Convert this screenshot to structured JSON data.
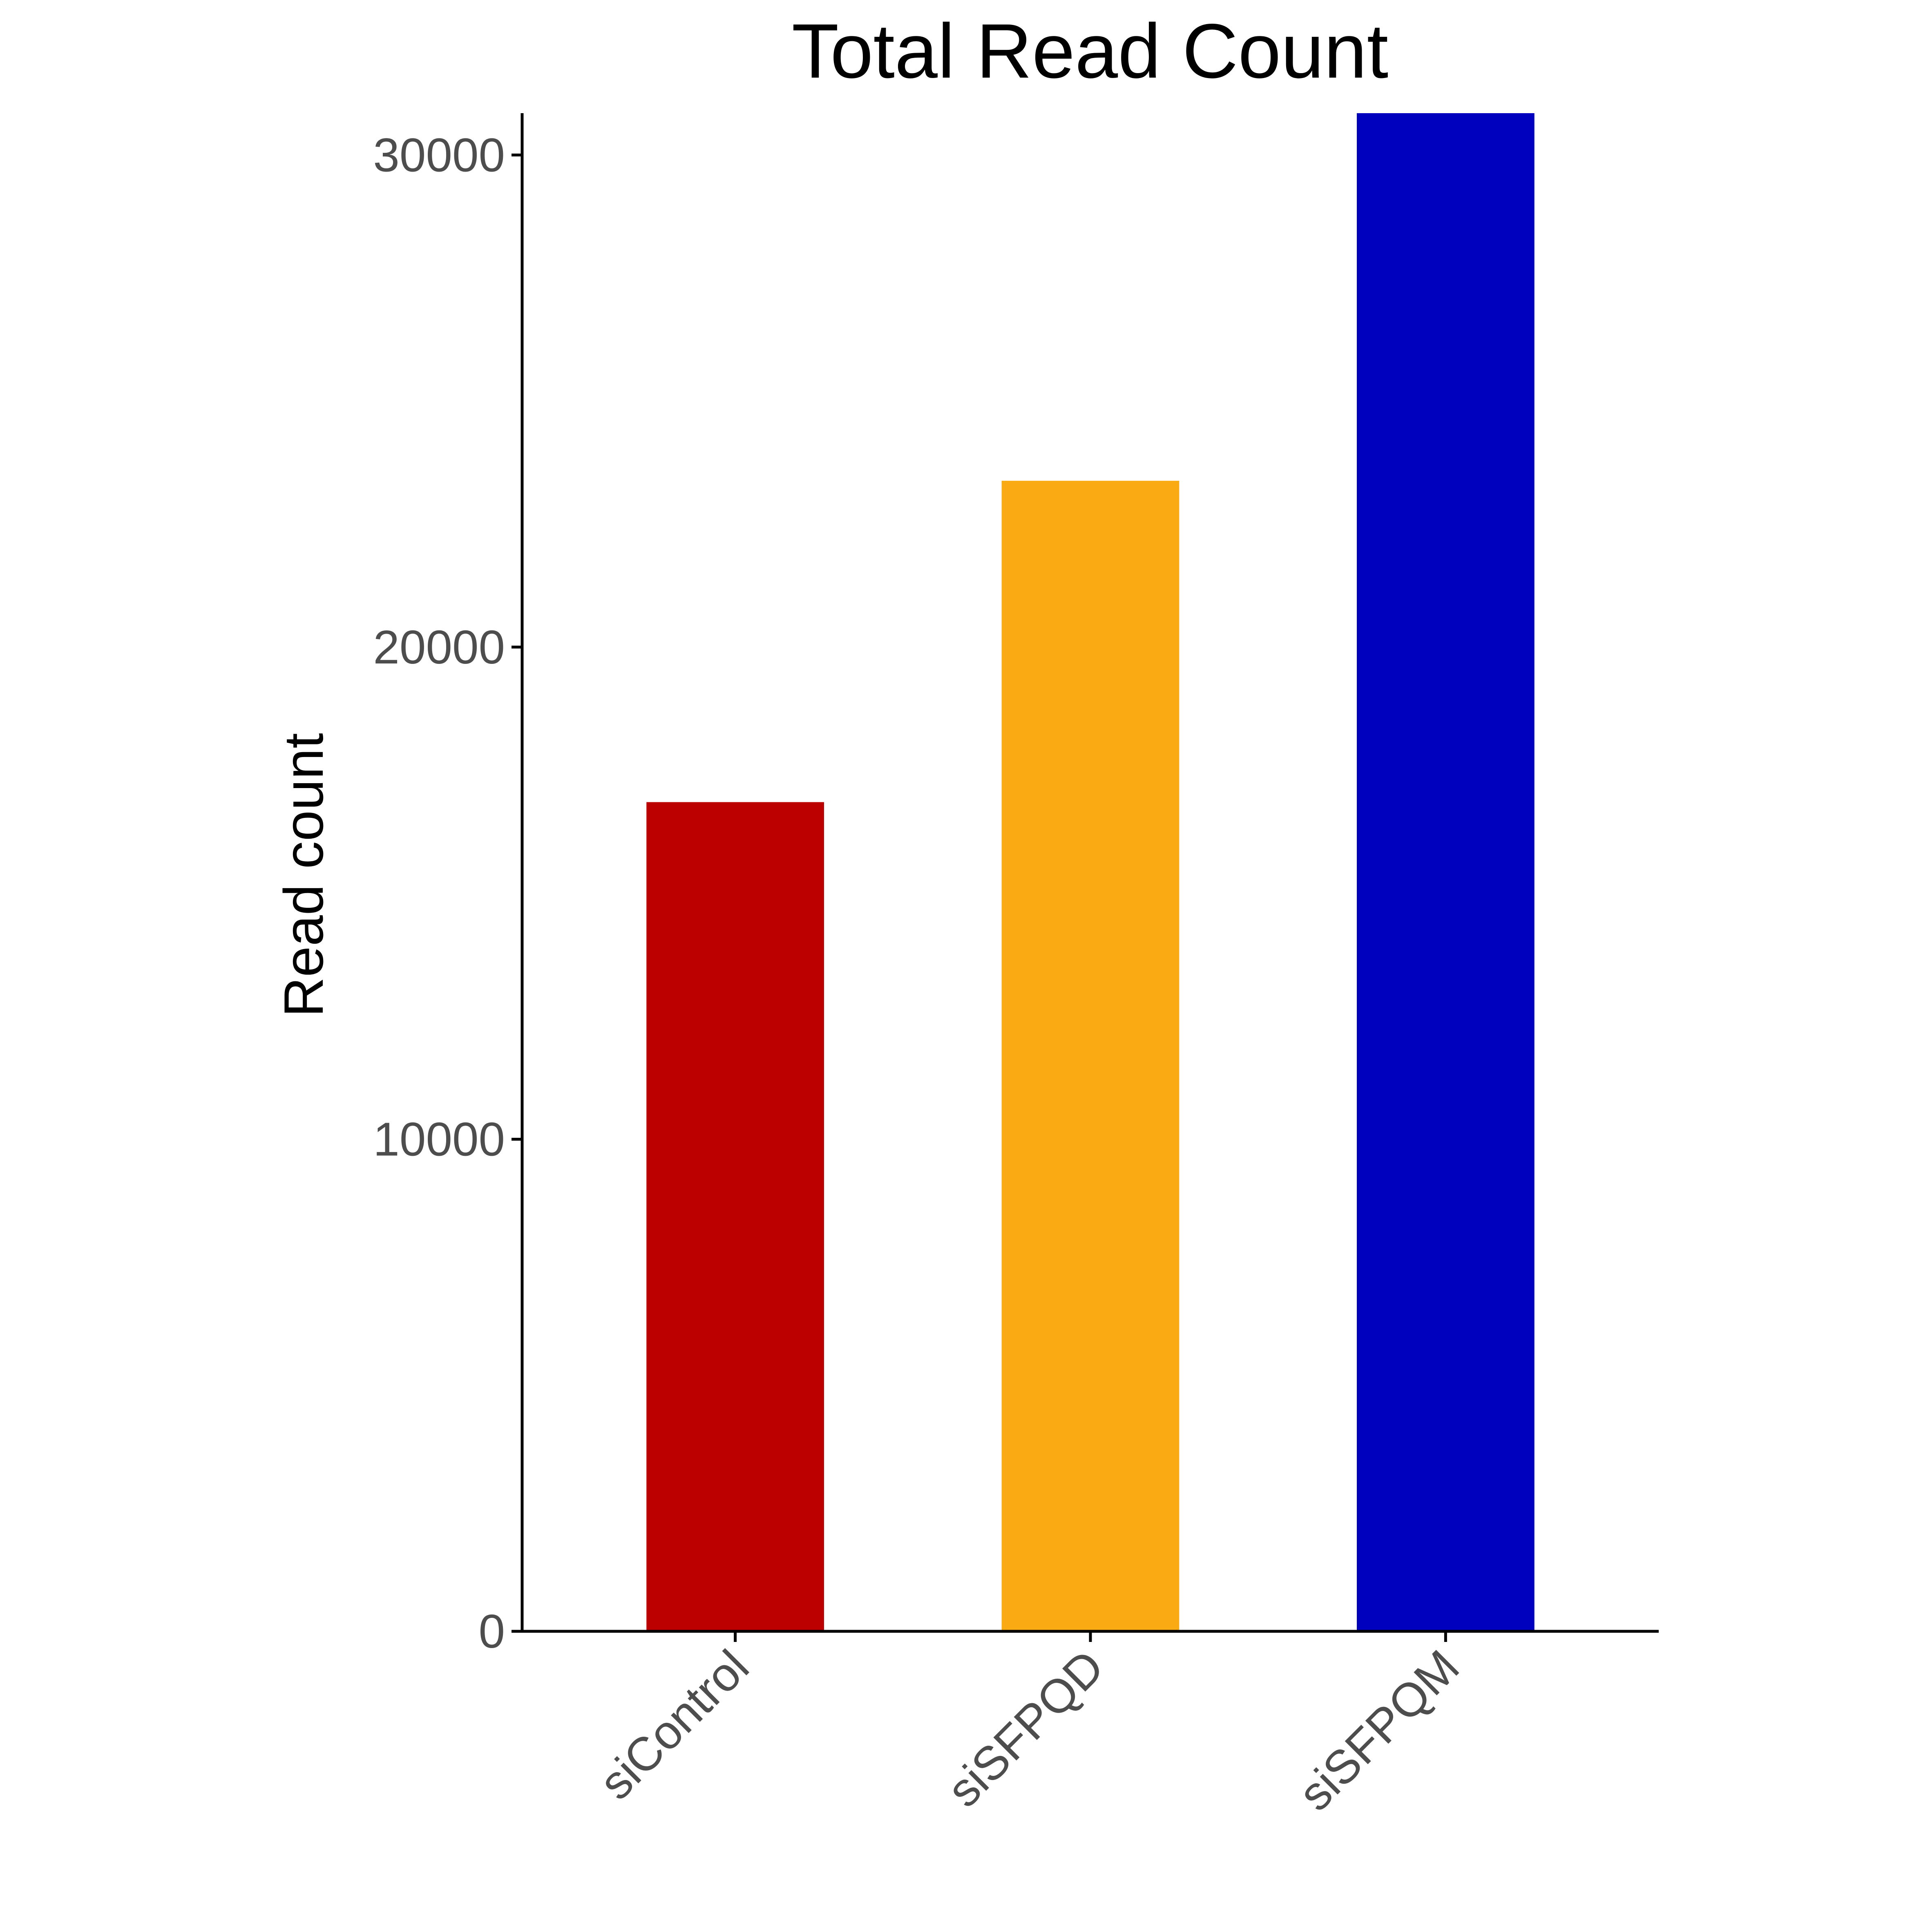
{
  "chart_data": {
    "type": "bar",
    "title": "Total Read Count",
    "xlabel": "",
    "ylabel": "Read count",
    "categories": [
      "siControl",
      "siSFPQD",
      "siSFPQM"
    ],
    "values": [
      16850,
      23380,
      30850
    ],
    "colors": [
      "#BC0000",
      "#FAAA12",
      "#0000BF"
    ],
    "ylim": [
      0,
      30850
    ],
    "yticks": [
      0,
      10000,
      20000,
      30000
    ],
    "ytick_labels": [
      "0",
      "10000",
      "20000",
      "30000"
    ],
    "grid": false,
    "legend": "none"
  }
}
